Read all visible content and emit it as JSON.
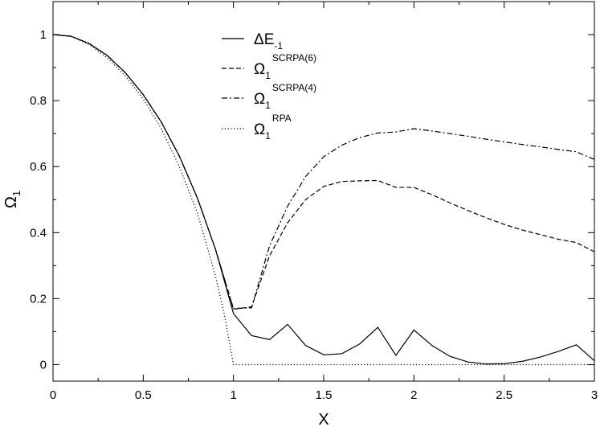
{
  "chart_data": {
    "type": "line",
    "xlabel": "X",
    "ylabel": "Ω",
    "ylabel_sub": "1",
    "xlim": [
      0,
      3
    ],
    "ylim": [
      -0.05,
      1.1
    ],
    "xticks": [
      0,
      0.5,
      1,
      1.5,
      2,
      2.5,
      3
    ],
    "xtick_labels": [
      "0",
      "0.5",
      "1",
      "1.5",
      "2",
      "2.5",
      "3"
    ],
    "yticks": [
      0,
      0.2,
      0.4,
      0.6,
      0.8,
      1
    ],
    "ytick_labels": [
      "0",
      "0.2",
      "0.4",
      "0.6",
      "0.8",
      "1"
    ],
    "grid": false,
    "legend_position": "top-center",
    "series": [
      {
        "name": "ΔE",
        "name_sub": "-1",
        "name_sup": "",
        "style": "solid",
        "x": [
          0,
          0.1,
          0.2,
          0.3,
          0.4,
          0.5,
          0.6,
          0.7,
          0.8,
          0.9,
          1.0,
          1.1,
          1.2,
          1.3,
          1.4,
          1.5,
          1.6,
          1.7,
          1.8,
          1.9,
          2.0,
          2.1,
          2.2,
          2.3,
          2.4,
          2.5,
          2.6,
          2.7,
          2.8,
          2.9,
          3.0
        ],
        "y": [
          1.0,
          0.995,
          0.973,
          0.937,
          0.885,
          0.818,
          0.735,
          0.632,
          0.505,
          0.35,
          0.155,
          0.088,
          0.076,
          0.122,
          0.058,
          0.03,
          0.033,
          0.063,
          0.113,
          0.028,
          0.105,
          0.058,
          0.025,
          0.008,
          0.002,
          0.003,
          0.01,
          0.023,
          0.04,
          0.06,
          0.012
        ]
      },
      {
        "name": "Ω",
        "name_sub": "1",
        "name_sup": "SCRPA(6)",
        "style": "dashed",
        "x": [
          0,
          0.1,
          0.2,
          0.3,
          0.4,
          0.5,
          0.6,
          0.7,
          0.8,
          0.9,
          1.0,
          1.1,
          1.2,
          1.3,
          1.4,
          1.5,
          1.6,
          1.7,
          1.8,
          1.9,
          2.0,
          2.1,
          2.2,
          2.3,
          2.4,
          2.5,
          2.6,
          2.7,
          2.8,
          2.9,
          3.0
        ],
        "y": [
          1.0,
          0.995,
          0.973,
          0.937,
          0.885,
          0.818,
          0.735,
          0.632,
          0.505,
          0.35,
          0.168,
          0.175,
          0.33,
          0.43,
          0.5,
          0.54,
          0.555,
          0.557,
          0.558,
          0.537,
          0.537,
          0.515,
          0.49,
          0.467,
          0.445,
          0.425,
          0.408,
          0.394,
          0.38,
          0.37,
          0.342
        ]
      },
      {
        "name": "Ω",
        "name_sub": "1",
        "name_sup": "SCRPA(4)",
        "style": "dashdot",
        "x": [
          0,
          0.1,
          0.2,
          0.3,
          0.4,
          0.5,
          0.6,
          0.7,
          0.8,
          0.9,
          1.0,
          1.1,
          1.2,
          1.3,
          1.4,
          1.5,
          1.6,
          1.7,
          1.8,
          1.9,
          2.0,
          2.1,
          2.2,
          2.3,
          2.4,
          2.5,
          2.6,
          2.7,
          2.8,
          2.9,
          3.0
        ],
        "y": [
          1.0,
          0.995,
          0.973,
          0.937,
          0.885,
          0.818,
          0.735,
          0.632,
          0.505,
          0.35,
          0.17,
          0.172,
          0.36,
          0.48,
          0.57,
          0.63,
          0.665,
          0.688,
          0.702,
          0.705,
          0.715,
          0.708,
          0.7,
          0.692,
          0.683,
          0.675,
          0.667,
          0.66,
          0.652,
          0.645,
          0.622
        ]
      },
      {
        "name": "Ω",
        "name_sub": "1",
        "name_sup": "RPA",
        "style": "dotted",
        "x": [
          0,
          0.1,
          0.2,
          0.3,
          0.4,
          0.5,
          0.6,
          0.7,
          0.8,
          0.9,
          0.95,
          1.0,
          1.5,
          2.0,
          2.5,
          3.0
        ],
        "y": [
          1.0,
          0.995,
          0.97,
          0.93,
          0.875,
          0.805,
          0.715,
          0.6,
          0.46,
          0.27,
          0.15,
          0.0,
          0.0,
          0.0,
          0.0,
          0.0
        ]
      }
    ]
  }
}
